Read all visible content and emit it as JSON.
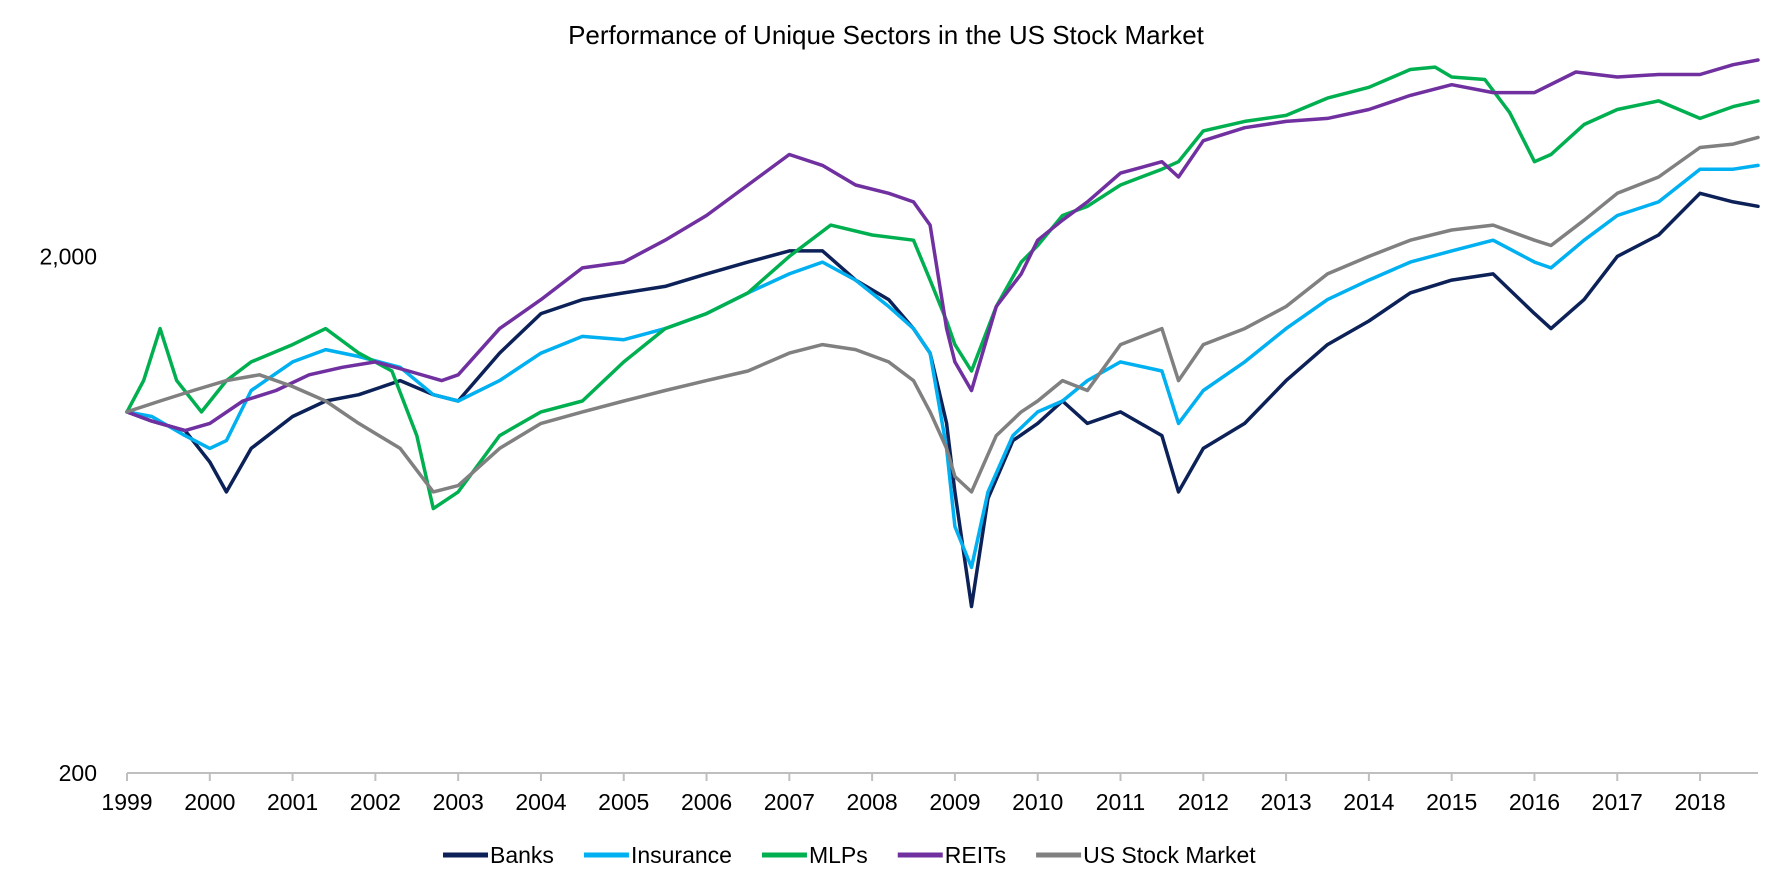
{
  "chart_data": {
    "type": "line",
    "title": "Performance of Unique Sectors in the US Stock Market",
    "xlabel": "",
    "ylabel": "",
    "y_scale": "log",
    "ylim": [
      200,
      4800
    ],
    "y_ticks": [
      200,
      2000
    ],
    "y_tick_labels": [
      "200",
      "2,000"
    ],
    "xlim": [
      1999,
      2018.7
    ],
    "x_ticks": [
      1999,
      2000,
      2001,
      2002,
      2003,
      2004,
      2005,
      2006,
      2007,
      2008,
      2009,
      2010,
      2011,
      2012,
      2013,
      2014,
      2015,
      2016,
      2017,
      2018
    ],
    "x_tick_labels": [
      "1999",
      "2000",
      "2001",
      "2002",
      "2003",
      "2004",
      "2005",
      "2006",
      "2007",
      "2008",
      "2009",
      "2010",
      "2011",
      "2012",
      "2013",
      "2014",
      "2015",
      "2016",
      "2017",
      "2018"
    ],
    "grid": false,
    "legend_position": "bottom",
    "series": [
      {
        "name": "Banks",
        "color": "#0c2158",
        "points": [
          [
            1999.0,
            1000
          ],
          [
            1999.3,
            960
          ],
          [
            1999.7,
            920
          ],
          [
            2000.0,
            800
          ],
          [
            2000.2,
            700
          ],
          [
            2000.5,
            850
          ],
          [
            2001.0,
            980
          ],
          [
            2001.4,
            1050
          ],
          [
            2001.8,
            1080
          ],
          [
            2002.3,
            1150
          ],
          [
            2002.7,
            1080
          ],
          [
            2003.0,
            1050
          ],
          [
            2003.5,
            1300
          ],
          [
            2004.0,
            1550
          ],
          [
            2004.5,
            1650
          ],
          [
            2005.0,
            1700
          ],
          [
            2005.5,
            1750
          ],
          [
            2006.0,
            1850
          ],
          [
            2006.5,
            1950
          ],
          [
            2007.0,
            2050
          ],
          [
            2007.4,
            2050
          ],
          [
            2007.8,
            1800
          ],
          [
            2008.2,
            1650
          ],
          [
            2008.5,
            1450
          ],
          [
            2008.7,
            1300
          ],
          [
            2008.9,
            950
          ],
          [
            2009.0,
            700
          ],
          [
            2009.2,
            420
          ],
          [
            2009.4,
            680
          ],
          [
            2009.7,
            880
          ],
          [
            2010.0,
            950
          ],
          [
            2010.3,
            1050
          ],
          [
            2010.6,
            950
          ],
          [
            2011.0,
            1000
          ],
          [
            2011.5,
            900
          ],
          [
            2011.7,
            700
          ],
          [
            2012.0,
            850
          ],
          [
            2012.5,
            950
          ],
          [
            2013.0,
            1150
          ],
          [
            2013.5,
            1350
          ],
          [
            2014.0,
            1500
          ],
          [
            2014.5,
            1700
          ],
          [
            2015.0,
            1800
          ],
          [
            2015.5,
            1850
          ],
          [
            2016.0,
            1550
          ],
          [
            2016.2,
            1450
          ],
          [
            2016.6,
            1650
          ],
          [
            2017.0,
            2000
          ],
          [
            2017.5,
            2200
          ],
          [
            2018.0,
            2650
          ],
          [
            2018.4,
            2550
          ],
          [
            2018.7,
            2500
          ]
        ]
      },
      {
        "name": "Insurance",
        "color": "#00b0f0",
        "points": [
          [
            1999.0,
            1000
          ],
          [
            1999.3,
            980
          ],
          [
            1999.7,
            900
          ],
          [
            2000.0,
            850
          ],
          [
            2000.2,
            880
          ],
          [
            2000.5,
            1100
          ],
          [
            2001.0,
            1250
          ],
          [
            2001.4,
            1320
          ],
          [
            2001.8,
            1280
          ],
          [
            2002.3,
            1220
          ],
          [
            2002.7,
            1080
          ],
          [
            2003.0,
            1050
          ],
          [
            2003.5,
            1150
          ],
          [
            2004.0,
            1300
          ],
          [
            2004.5,
            1400
          ],
          [
            2005.0,
            1380
          ],
          [
            2005.5,
            1450
          ],
          [
            2006.0,
            1550
          ],
          [
            2006.5,
            1700
          ],
          [
            2007.0,
            1850
          ],
          [
            2007.4,
            1950
          ],
          [
            2007.8,
            1800
          ],
          [
            2008.2,
            1600
          ],
          [
            2008.5,
            1450
          ],
          [
            2008.7,
            1300
          ],
          [
            2008.9,
            850
          ],
          [
            2009.0,
            600
          ],
          [
            2009.2,
            500
          ],
          [
            2009.4,
            700
          ],
          [
            2009.7,
            900
          ],
          [
            2010.0,
            1000
          ],
          [
            2010.3,
            1050
          ],
          [
            2010.6,
            1150
          ],
          [
            2011.0,
            1250
          ],
          [
            2011.5,
            1200
          ],
          [
            2011.7,
            950
          ],
          [
            2012.0,
            1100
          ],
          [
            2012.5,
            1250
          ],
          [
            2013.0,
            1450
          ],
          [
            2013.5,
            1650
          ],
          [
            2014.0,
            1800
          ],
          [
            2014.5,
            1950
          ],
          [
            2015.0,
            2050
          ],
          [
            2015.5,
            2150
          ],
          [
            2016.0,
            1950
          ],
          [
            2016.2,
            1900
          ],
          [
            2016.6,
            2150
          ],
          [
            2017.0,
            2400
          ],
          [
            2017.5,
            2550
          ],
          [
            2018.0,
            2950
          ],
          [
            2018.4,
            2950
          ],
          [
            2018.7,
            3000
          ]
        ]
      },
      {
        "name": "MLPs",
        "color": "#00b050",
        "points": [
          [
            1999.0,
            1000
          ],
          [
            1999.2,
            1150
          ],
          [
            1999.4,
            1450
          ],
          [
            1999.6,
            1150
          ],
          [
            1999.9,
            1000
          ],
          [
            2000.2,
            1150
          ],
          [
            2000.5,
            1250
          ],
          [
            2001.0,
            1350
          ],
          [
            2001.4,
            1450
          ],
          [
            2001.8,
            1300
          ],
          [
            2002.2,
            1200
          ],
          [
            2002.5,
            900
          ],
          [
            2002.7,
            650
          ],
          [
            2003.0,
            700
          ],
          [
            2003.5,
            900
          ],
          [
            2004.0,
            1000
          ],
          [
            2004.5,
            1050
          ],
          [
            2005.0,
            1250
          ],
          [
            2005.5,
            1450
          ],
          [
            2006.0,
            1550
          ],
          [
            2006.5,
            1700
          ],
          [
            2007.0,
            2000
          ],
          [
            2007.5,
            2300
          ],
          [
            2008.0,
            2200
          ],
          [
            2008.5,
            2150
          ],
          [
            2008.7,
            1800
          ],
          [
            2008.9,
            1500
          ],
          [
            2009.0,
            1350
          ],
          [
            2009.2,
            1200
          ],
          [
            2009.5,
            1600
          ],
          [
            2009.8,
            1950
          ],
          [
            2010.0,
            2100
          ],
          [
            2010.3,
            2400
          ],
          [
            2010.6,
            2500
          ],
          [
            2011.0,
            2750
          ],
          [
            2011.5,
            2950
          ],
          [
            2011.7,
            3050
          ],
          [
            2012.0,
            3500
          ],
          [
            2012.5,
            3650
          ],
          [
            2013.0,
            3750
          ],
          [
            2013.5,
            4050
          ],
          [
            2014.0,
            4250
          ],
          [
            2014.5,
            4600
          ],
          [
            2014.8,
            4650
          ],
          [
            2015.0,
            4450
          ],
          [
            2015.4,
            4400
          ],
          [
            2015.7,
            3800
          ],
          [
            2016.0,
            3050
          ],
          [
            2016.2,
            3150
          ],
          [
            2016.6,
            3600
          ],
          [
            2017.0,
            3850
          ],
          [
            2017.5,
            4000
          ],
          [
            2018.0,
            3700
          ],
          [
            2018.4,
            3900
          ],
          [
            2018.7,
            4000
          ]
        ]
      },
      {
        "name": "REITs",
        "color": "#7030a0",
        "points": [
          [
            1999.0,
            1000
          ],
          [
            1999.3,
            960
          ],
          [
            1999.7,
            920
          ],
          [
            2000.0,
            950
          ],
          [
            2000.4,
            1050
          ],
          [
            2000.8,
            1100
          ],
          [
            2001.2,
            1180
          ],
          [
            2001.6,
            1220
          ],
          [
            2002.0,
            1250
          ],
          [
            2002.4,
            1200
          ],
          [
            2002.8,
            1150
          ],
          [
            2003.0,
            1180
          ],
          [
            2003.5,
            1450
          ],
          [
            2004.0,
            1650
          ],
          [
            2004.5,
            1900
          ],
          [
            2005.0,
            1950
          ],
          [
            2005.5,
            2150
          ],
          [
            2006.0,
            2400
          ],
          [
            2006.5,
            2750
          ],
          [
            2007.0,
            3150
          ],
          [
            2007.4,
            3000
          ],
          [
            2007.8,
            2750
          ],
          [
            2008.2,
            2650
          ],
          [
            2008.5,
            2550
          ],
          [
            2008.7,
            2300
          ],
          [
            2008.9,
            1450
          ],
          [
            2009.0,
            1250
          ],
          [
            2009.2,
            1100
          ],
          [
            2009.5,
            1600
          ],
          [
            2009.8,
            1850
          ],
          [
            2010.0,
            2150
          ],
          [
            2010.3,
            2350
          ],
          [
            2010.6,
            2550
          ],
          [
            2011.0,
            2900
          ],
          [
            2011.5,
            3050
          ],
          [
            2011.7,
            2850
          ],
          [
            2012.0,
            3350
          ],
          [
            2012.5,
            3550
          ],
          [
            2013.0,
            3650
          ],
          [
            2013.5,
            3700
          ],
          [
            2014.0,
            3850
          ],
          [
            2014.5,
            4100
          ],
          [
            2015.0,
            4300
          ],
          [
            2015.5,
            4150
          ],
          [
            2016.0,
            4150
          ],
          [
            2016.5,
            4550
          ],
          [
            2017.0,
            4450
          ],
          [
            2017.5,
            4500
          ],
          [
            2018.0,
            4500
          ],
          [
            2018.4,
            4700
          ],
          [
            2018.7,
            4800
          ]
        ]
      },
      {
        "name": "US Stock Market",
        "color": "#808080",
        "points": [
          [
            1999.0,
            1000
          ],
          [
            1999.4,
            1050
          ],
          [
            1999.8,
            1100
          ],
          [
            2000.2,
            1150
          ],
          [
            2000.6,
            1180
          ],
          [
            2001.0,
            1120
          ],
          [
            2001.4,
            1050
          ],
          [
            2001.8,
            950
          ],
          [
            2002.3,
            850
          ],
          [
            2002.7,
            700
          ],
          [
            2003.0,
            720
          ],
          [
            2003.5,
            850
          ],
          [
            2004.0,
            950
          ],
          [
            2004.5,
            1000
          ],
          [
            2005.0,
            1050
          ],
          [
            2005.5,
            1100
          ],
          [
            2006.0,
            1150
          ],
          [
            2006.5,
            1200
          ],
          [
            2007.0,
            1300
          ],
          [
            2007.4,
            1350
          ],
          [
            2007.8,
            1320
          ],
          [
            2008.2,
            1250
          ],
          [
            2008.5,
            1150
          ],
          [
            2008.7,
            1000
          ],
          [
            2008.9,
            850
          ],
          [
            2009.0,
            750
          ],
          [
            2009.2,
            700
          ],
          [
            2009.5,
            900
          ],
          [
            2009.8,
            1000
          ],
          [
            2010.0,
            1050
          ],
          [
            2010.3,
            1150
          ],
          [
            2010.6,
            1100
          ],
          [
            2011.0,
            1350
          ],
          [
            2011.5,
            1450
          ],
          [
            2011.7,
            1150
          ],
          [
            2012.0,
            1350
          ],
          [
            2012.5,
            1450
          ],
          [
            2013.0,
            1600
          ],
          [
            2013.5,
            1850
          ],
          [
            2014.0,
            2000
          ],
          [
            2014.5,
            2150
          ],
          [
            2015.0,
            2250
          ],
          [
            2015.5,
            2300
          ],
          [
            2016.0,
            2150
          ],
          [
            2016.2,
            2100
          ],
          [
            2016.6,
            2350
          ],
          [
            2017.0,
            2650
          ],
          [
            2017.5,
            2850
          ],
          [
            2018.0,
            3250
          ],
          [
            2018.4,
            3300
          ],
          [
            2018.7,
            3400
          ]
        ]
      }
    ]
  }
}
